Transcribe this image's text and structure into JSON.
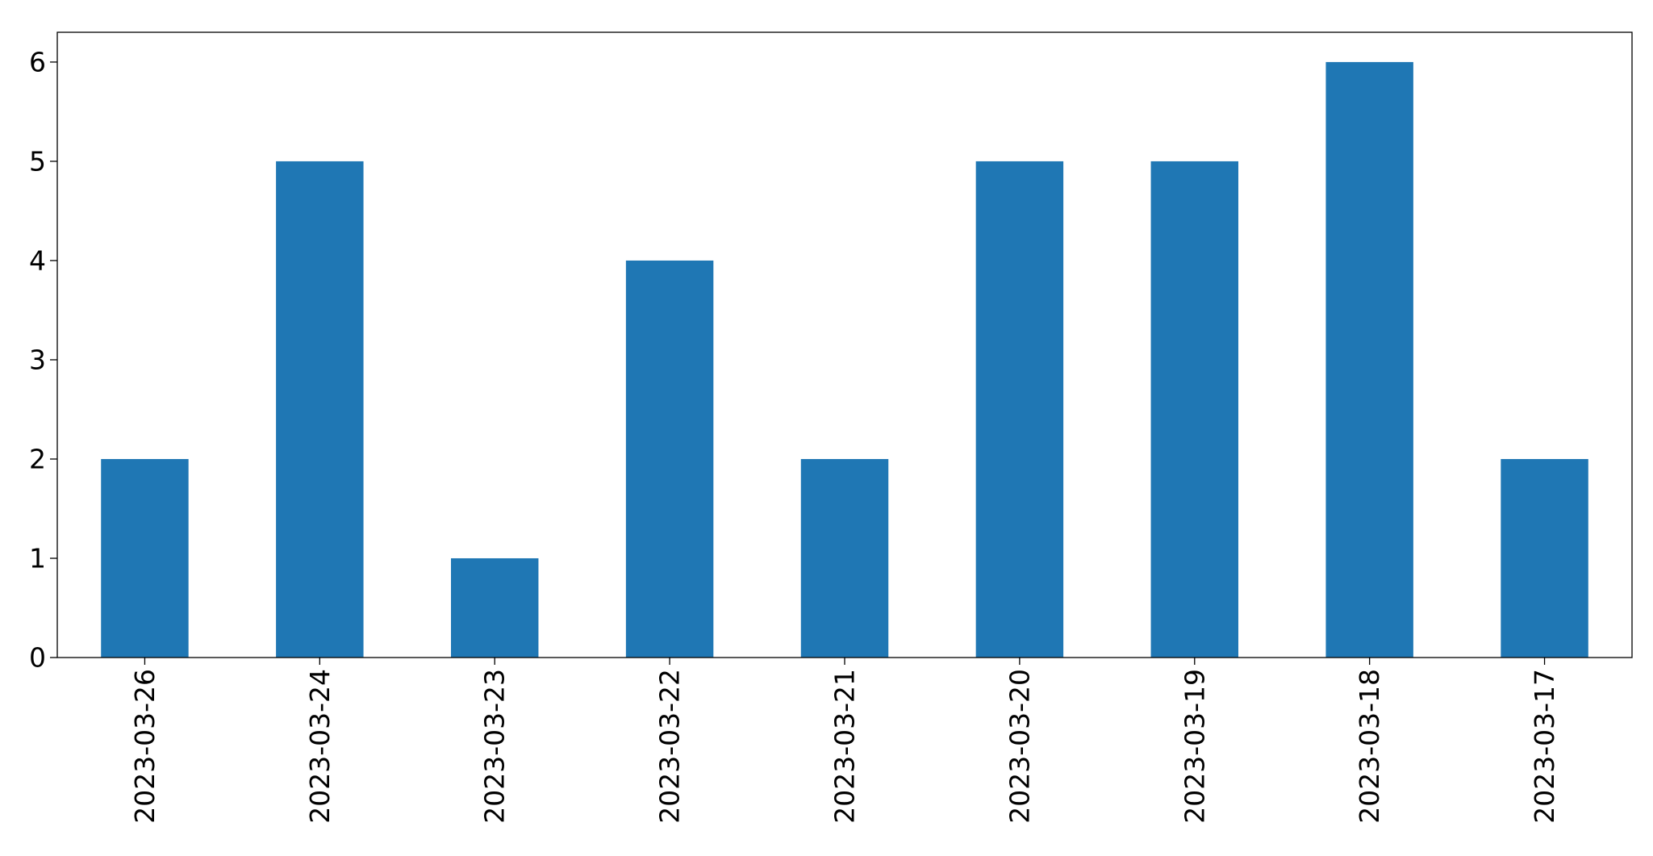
{
  "chart_data": {
    "type": "bar",
    "title": "",
    "xlabel": "",
    "ylabel": "",
    "categories": [
      "2023-03-26",
      "2023-03-24",
      "2023-03-23",
      "2023-03-22",
      "2023-03-21",
      "2023-03-20",
      "2023-03-19",
      "2023-03-18",
      "2023-03-17"
    ],
    "values": [
      2,
      5,
      1,
      4,
      2,
      5,
      5,
      6,
      2
    ],
    "ylim": [
      0,
      6.3
    ],
    "yticks": [
      0,
      1,
      2,
      3,
      4,
      5,
      6
    ],
    "grid": false,
    "legend": "none",
    "bar_color": "#1f77b4"
  }
}
